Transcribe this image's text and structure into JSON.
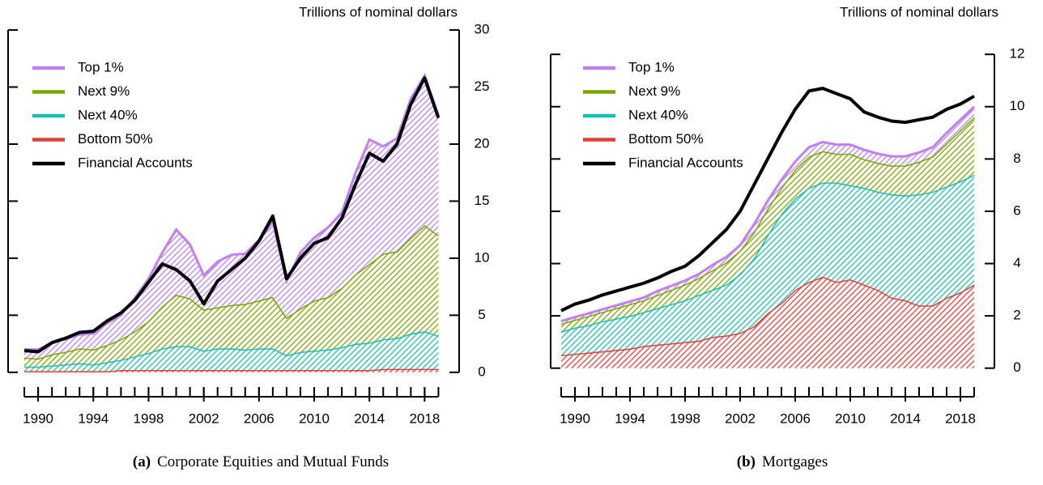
{
  "chart_data": [
    {
      "type": "area",
      "axis_label": "Trillions of nominal dollars",
      "caption_label": "(a)",
      "caption": "Corporate Equities and Mutual Funds",
      "x": [
        1989,
        1990,
        1991,
        1992,
        1993,
        1994,
        1995,
        1996,
        1997,
        1998,
        1999,
        2000,
        2001,
        2002,
        2003,
        2004,
        2005,
        2006,
        2007,
        2008,
        2009,
        2010,
        2011,
        2012,
        2013,
        2014,
        2015,
        2016,
        2017,
        2018,
        2019
      ],
      "xlim": [
        1988,
        2020.5
      ],
      "xticks": [
        1990,
        1994,
        1998,
        2002,
        2006,
        2010,
        2014,
        2018
      ],
      "xticks_minor": [
        1989,
        1990,
        1991,
        1992,
        1993,
        1994,
        1995,
        1996,
        1997,
        1998,
        1999,
        2000,
        2001,
        2002,
        2003,
        2004,
        2005,
        2006,
        2007,
        2008,
        2009,
        2010,
        2011,
        2012,
        2013,
        2014,
        2015,
        2016,
        2017,
        2018,
        2019
      ],
      "ylim": [
        -2,
        30.5
      ],
      "yticks": [
        0,
        5,
        10,
        15,
        20,
        25,
        30
      ],
      "y_axis_side": "right",
      "legend": "top-left",
      "series": [
        {
          "name": "Top 1%",
          "type": "area",
          "color": "#c27ff0",
          "values": [
            0.7,
            0.8,
            1.0,
            1.1,
            1.2,
            1.4,
            1.9,
            2.1,
            2.9,
            3.7,
            4.7,
            5.7,
            4.7,
            3.0,
            4.0,
            4.4,
            4.4,
            5.3,
            6.6,
            3.2,
            4.9,
            5.5,
            6.1,
            6.6,
            8.9,
            10.9,
            9.4,
            9.9,
            12.2,
            13.1,
            10.5
          ]
        },
        {
          "name": "Next 9%",
          "type": "area",
          "color": "#7aa500",
          "values": [
            0.8,
            0.7,
            1.0,
            1.1,
            1.3,
            1.3,
            1.5,
            1.8,
            2.2,
            2.8,
            3.7,
            4.5,
            4.2,
            3.6,
            3.6,
            3.8,
            4.0,
            4.2,
            4.5,
            3.3,
            3.8,
            4.4,
            4.6,
            5.2,
            6.1,
            6.9,
            7.5,
            7.6,
            8.4,
            9.3,
            8.8
          ]
        },
        {
          "name": "Next 40%",
          "type": "area",
          "color": "#1cbdb5",
          "values": [
            0.4,
            0.4,
            0.5,
            0.6,
            0.7,
            0.6,
            0.8,
            0.9,
            1.2,
            1.5,
            1.9,
            2.1,
            2.1,
            1.7,
            1.9,
            1.9,
            1.8,
            1.9,
            1.9,
            1.3,
            1.6,
            1.7,
            1.8,
            2.0,
            2.3,
            2.4,
            2.6,
            2.7,
            3.1,
            3.3,
            2.9
          ]
        },
        {
          "name": "Bottom 50%",
          "type": "area",
          "color": "#e0403a",
          "values": [
            0.1,
            0.1,
            0.1,
            0.1,
            0.1,
            0.1,
            0.1,
            0.2,
            0.2,
            0.2,
            0.2,
            0.2,
            0.2,
            0.2,
            0.2,
            0.2,
            0.2,
            0.2,
            0.2,
            0.2,
            0.2,
            0.2,
            0.2,
            0.2,
            0.2,
            0.2,
            0.3,
            0.3,
            0.3,
            0.3,
            0.3
          ]
        },
        {
          "name": "Financial Accounts",
          "type": "line",
          "color": "#000000",
          "values": [
            1.9,
            1.8,
            2.6,
            3.0,
            3.5,
            3.6,
            4.5,
            5.2,
            6.3,
            7.9,
            9.5,
            9.0,
            8.0,
            6.0,
            8.0,
            9.0,
            10.0,
            11.5,
            13.7,
            8.2,
            10.0,
            11.3,
            11.8,
            13.5,
            16.5,
            19.2,
            18.5,
            20.0,
            23.5,
            25.8,
            22.3
          ]
        }
      ]
    },
    {
      "type": "area",
      "axis_label": "Trillions of nominal dollars",
      "caption_label": "(b)",
      "caption": "Mortgages",
      "x": [
        1989,
        1990,
        1991,
        1992,
        1993,
        1994,
        1995,
        1996,
        1997,
        1998,
        1999,
        2000,
        2001,
        2002,
        2003,
        2004,
        2005,
        2006,
        2007,
        2008,
        2009,
        2010,
        2011,
        2012,
        2013,
        2014,
        2015,
        2016,
        2017,
        2018,
        2019
      ],
      "xlim": [
        1988,
        2020.5
      ],
      "xticks": [
        1990,
        1994,
        1998,
        2002,
        2006,
        2010,
        2014,
        2018
      ],
      "xticks_minor": [
        1989,
        1990,
        1991,
        1992,
        1993,
        1994,
        1995,
        1996,
        1997,
        1998,
        1999,
        2000,
        2001,
        2002,
        2003,
        2004,
        2005,
        2006,
        2007,
        2008,
        2009,
        2010,
        2011,
        2012,
        2013,
        2014,
        2015,
        2016,
        2017,
        2018,
        2019
      ],
      "ylim": [
        -1,
        12.5
      ],
      "yticks": [
        0,
        2,
        4,
        6,
        8,
        10,
        12
      ],
      "y_axis_side": "right",
      "legend": "top-left",
      "series": [
        {
          "name": "Top 1%",
          "type": "area",
          "color": "#c27ff0",
          "values": [
            0.1,
            0.1,
            0.1,
            0.1,
            0.1,
            0.1,
            0.1,
            0.15,
            0.15,
            0.15,
            0.15,
            0.2,
            0.2,
            0.2,
            0.3,
            0.3,
            0.3,
            0.3,
            0.35,
            0.35,
            0.35,
            0.35,
            0.35,
            0.35,
            0.35,
            0.35,
            0.35,
            0.35,
            0.4,
            0.4,
            0.4
          ]
        },
        {
          "name": "Next 9%",
          "type": "area",
          "color": "#7aa500",
          "values": [
            0.3,
            0.3,
            0.35,
            0.35,
            0.4,
            0.45,
            0.45,
            0.5,
            0.55,
            0.6,
            0.65,
            0.75,
            0.85,
            0.9,
            1.0,
            1.0,
            1.0,
            1.1,
            1.2,
            1.2,
            1.1,
            1.2,
            1.1,
            1.1,
            1.1,
            1.15,
            1.25,
            1.35,
            1.65,
            1.95,
            2.2
          ]
        },
        {
          "name": "Next 40%",
          "type": "area",
          "color": "#1cbdb5",
          "values": [
            0.9,
            1.0,
            1.05,
            1.15,
            1.2,
            1.25,
            1.3,
            1.4,
            1.5,
            1.6,
            1.75,
            1.8,
            1.95,
            2.25,
            2.6,
            3.0,
            3.4,
            3.5,
            3.6,
            3.6,
            3.8,
            3.6,
            3.7,
            3.75,
            3.95,
            4.0,
            4.25,
            4.35,
            4.25,
            4.25,
            4.2
          ]
        },
        {
          "name": "Bottom 50%",
          "type": "area",
          "color": "#e0403a",
          "values": [
            0.5,
            0.55,
            0.6,
            0.65,
            0.7,
            0.75,
            0.85,
            0.9,
            0.95,
            1.0,
            1.05,
            1.2,
            1.25,
            1.35,
            1.6,
            2.1,
            2.5,
            3.0,
            3.3,
            3.5,
            3.3,
            3.4,
            3.2,
            3.0,
            2.7,
            2.6,
            2.4,
            2.4,
            2.7,
            2.9,
            3.2
          ]
        },
        {
          "name": "Financial Accounts",
          "type": "line",
          "color": "#000000",
          "values": [
            2.2,
            2.45,
            2.6,
            2.8,
            2.95,
            3.1,
            3.25,
            3.45,
            3.7,
            3.9,
            4.3,
            4.8,
            5.3,
            6.0,
            7.0,
            8.0,
            9.0,
            9.9,
            10.6,
            10.7,
            10.5,
            10.3,
            9.8,
            9.6,
            9.45,
            9.4,
            9.5,
            9.6,
            9.9,
            10.1,
            10.4
          ]
        }
      ]
    }
  ]
}
